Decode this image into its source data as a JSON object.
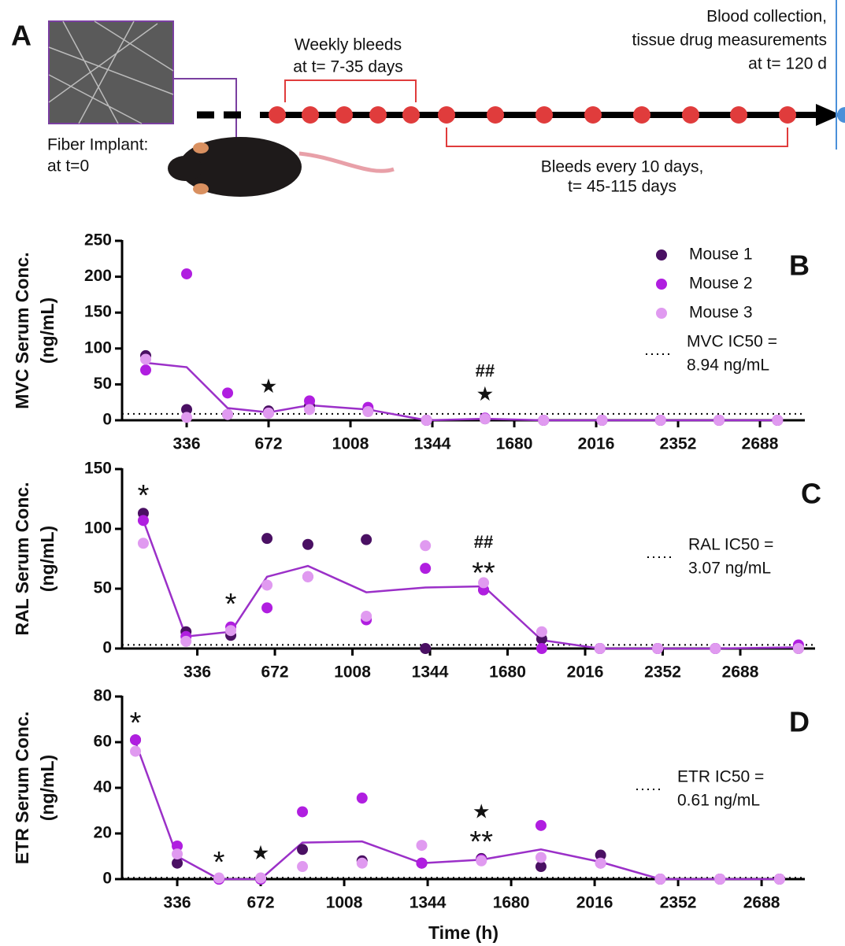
{
  "panel_a": {
    "label": "A",
    "weekly_bleeds": [
      "Weekly bleeds",
      "at t= 7-35 days"
    ],
    "blood_collection": [
      "Blood collection,",
      "tissue drug measurements",
      "at t= 120 d"
    ],
    "fiber_implant": [
      "Fiber Implant:",
      "at t=0"
    ],
    "bleeds_10_days": [
      "Bleeds every 10 days,",
      "t= 45-115 days"
    ]
  },
  "chart_data": [
    {
      "type": "scatter",
      "panel": "B",
      "ylabel": [
        "MVC Serum Conc.",
        "(ng/mL)"
      ],
      "x": [
        168,
        336,
        504,
        672,
        840,
        1080,
        1320,
        1560,
        1800,
        2040,
        2280,
        2520,
        2760
      ],
      "series": [
        {
          "name": "Mouse 1",
          "color": "#4a1063",
          "values": [
            90,
            15,
            8,
            13,
            20,
            15,
            0,
            2,
            0,
            0,
            0,
            0,
            0
          ]
        },
        {
          "name": "Mouse 2",
          "color": "#b01ee0",
          "values": [
            70,
            204,
            38,
            10,
            27,
            18,
            0,
            3,
            0,
            0,
            0,
            0,
            0
          ]
        },
        {
          "name": "Mouse 3",
          "color": "#e09af0",
          "values": [
            85,
            4,
            8,
            10,
            15,
            12,
            0,
            2,
            0,
            0,
            0,
            0,
            0
          ]
        }
      ],
      "mean_line": {
        "color": "#9b30c8",
        "values": [
          80,
          74,
          17,
          11,
          21,
          15,
          0,
          2,
          0,
          0,
          0,
          0,
          0
        ]
      },
      "ic50": 8.94,
      "ic50_label": [
        "MVC IC50 =",
        "8.94 ng/mL"
      ],
      "annotations": [
        {
          "text": "★",
          "x": 672,
          "y": 46
        },
        {
          "text": "##",
          "x": 1560,
          "y": 67
        },
        {
          "text": "★",
          "x": 1560,
          "y": 35
        }
      ],
      "xlim": [
        71,
        2872
      ],
      "xticks": [
        336,
        672,
        1008,
        1344,
        1680,
        2016,
        2352,
        2688
      ],
      "ylim": [
        0,
        250
      ],
      "yticks": [
        0,
        50,
        100,
        150,
        200,
        250
      ],
      "legend": "upper right"
    },
    {
      "type": "scatter",
      "panel": "C",
      "ylabel": [
        "RAL Serum Conc.",
        "(ng/mL)"
      ],
      "x": [
        102,
        287,
        481,
        638,
        815,
        1068,
        1324,
        1576,
        1828,
        2080,
        2330,
        2580,
        2940
      ],
      "series": [
        {
          "name": "Mouse 1",
          "color": "#4a1063",
          "values": [
            113,
            14,
            11,
            92,
            87,
            91,
            0,
            49,
            8,
            0,
            0,
            0,
            0
          ]
        },
        {
          "name": "Mouse 2",
          "color": "#b01ee0",
          "values": [
            107,
            10,
            18,
            34,
            60,
            24,
            67,
            49,
            0,
            0,
            0,
            0,
            3
          ]
        },
        {
          "name": "Mouse 3",
          "color": "#e09af0",
          "values": [
            88,
            6,
            15,
            53,
            60,
            27,
            86,
            55,
            14,
            0,
            0,
            0,
            0
          ]
        }
      ],
      "mean_line": {
        "color": "#9b30c8",
        "values": [
          107,
          10,
          14,
          60,
          69,
          47,
          51,
          52,
          7,
          0,
          0,
          0,
          1
        ]
      },
      "ic50": 3.07,
      "ic50_label": [
        "RAL IC50 =",
        "3.07 ng/mL"
      ],
      "annotations": [
        {
          "text": "*",
          "x": 102,
          "y": 133
        },
        {
          "text": "*",
          "x": 481,
          "y": 42
        },
        {
          "text": "##",
          "x": 1576,
          "y": 88
        },
        {
          "text": "**",
          "x": 1576,
          "y": 68
        }
      ],
      "xlim": [
        10,
        3012
      ],
      "xticks": [
        336,
        672,
        1008,
        1344,
        1680,
        2016,
        2352,
        2688
      ],
      "ylim": [
        0,
        150
      ],
      "yticks": [
        0,
        50,
        100,
        150
      ]
    },
    {
      "type": "scatter",
      "panel": "D",
      "ylabel": [
        "ETR Serum Conc.",
        "(ng/mL)"
      ],
      "xlabel": "Time (h)",
      "x": [
        168,
        336,
        504,
        672,
        840,
        1080,
        1320,
        1560,
        1800,
        2040,
        2280,
        2520,
        2760
      ],
      "series": [
        {
          "name": "Mouse 1",
          "color": "#4a1063",
          "values": [
            61,
            7,
            0,
            0,
            13,
            8,
            7,
            9,
            5.5,
            10.5,
            0,
            0,
            0
          ]
        },
        {
          "name": "Mouse 2",
          "color": "#b01ee0",
          "values": [
            61,
            14.5,
            0,
            0,
            29.5,
            35.5,
            7,
            8.5,
            23.5,
            7,
            0,
            0,
            0
          ]
        },
        {
          "name": "Mouse 3",
          "color": "#e09af0",
          "values": [
            56,
            11,
            0.5,
            0.5,
            5.5,
            7,
            14.8,
            8,
            9.5,
            7,
            0,
            0,
            0
          ]
        }
      ],
      "mean_line": {
        "color": "#9b30c8",
        "values": [
          60,
          10,
          0,
          0,
          16,
          16.5,
          7,
          8.5,
          13,
          7.5,
          0,
          0,
          0
        ]
      },
      "ic50": 0.61,
      "ic50_label": [
        "ETR IC50 =",
        "0.61 ng/mL"
      ],
      "annotations": [
        {
          "text": "*",
          "x": 168,
          "y": 71
        },
        {
          "text": "*",
          "x": 504,
          "y": 10
        },
        {
          "text": "★",
          "x": 672,
          "y": 11
        },
        {
          "text": "★",
          "x": 1560,
          "y": 29
        },
        {
          "text": "**",
          "x": 1560,
          "y": 19
        }
      ],
      "xlim": [
        114,
        2862
      ],
      "xticks": [
        336,
        672,
        1008,
        1344,
        1680,
        2016,
        2352,
        2688
      ],
      "ylim": [
        0,
        80
      ],
      "yticks": [
        0,
        20,
        40,
        60,
        80
      ]
    }
  ]
}
